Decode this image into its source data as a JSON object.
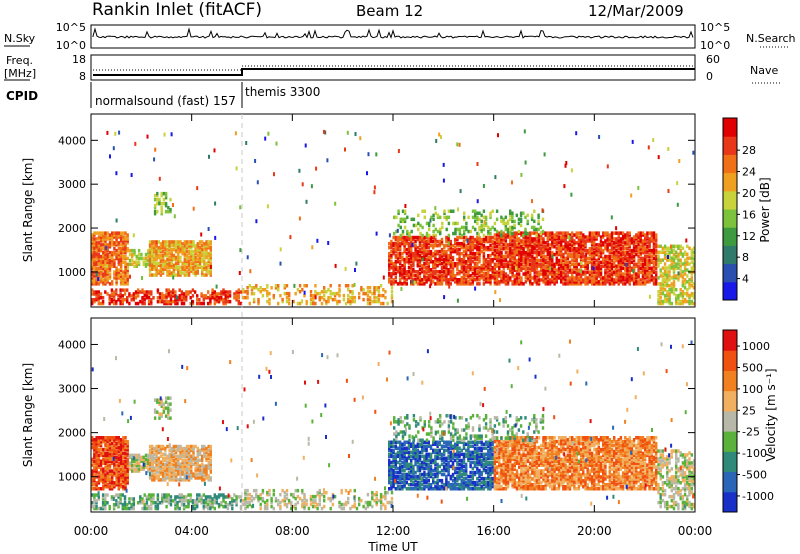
{
  "header": {
    "title": "Rankin Inlet (fitACF)",
    "beam": "Beam 12",
    "date": "12/Mar/2009"
  },
  "sky_panel": {
    "left_label": "N.Sky",
    "left_ticks": [
      "10^5",
      "10^0"
    ],
    "right_ticks": [
      "10^5",
      "10^0"
    ],
    "right_label": "N.Search"
  },
  "freq_panel": {
    "left_label_1": "Freq.",
    "left_label_2": "[MHz]",
    "left_ticks": [
      "18",
      "8"
    ],
    "right_ticks": [
      "60",
      "0"
    ],
    "right_label": "Nave"
  },
  "cpid": {
    "label": "CPID",
    "modes": [
      {
        "name": "normalsound (fast) 157",
        "start_hour": 0,
        "end_hour": 6
      },
      {
        "name": "themis 3300",
        "start_hour": 6,
        "end_hour": 24
      }
    ]
  },
  "chart_data": [
    {
      "type": "heatmap",
      "name": "power",
      "ylabel": "Slant Range [km]",
      "yticks": [
        "1000",
        "2000",
        "3000",
        "4000"
      ],
      "ylim": [
        200,
        4600
      ],
      "xlim": [
        0,
        24
      ],
      "colorbar": {
        "label": "Power [dB]",
        "ticks": [
          "4",
          "8",
          "12",
          "16",
          "20",
          "24",
          "28"
        ],
        "colors": [
          "#1818e8",
          "#2a4fb0",
          "#2f7a6a",
          "#3e9a3e",
          "#7cc23a",
          "#c8d23a",
          "#f0a020",
          "#f07018",
          "#e83818",
          "#e00000"
        ]
      }
    },
    {
      "type": "heatmap",
      "name": "velocity",
      "ylabel": "Slant Range [km]",
      "yticks": [
        "1000",
        "2000",
        "3000",
        "4000"
      ],
      "ylim": [
        200,
        4600
      ],
      "xlim": [
        0,
        24
      ],
      "xlabel": "Time UT",
      "xticks": [
        "00:00",
        "04:00",
        "08:00",
        "12:00",
        "16:00",
        "20:00",
        "00:00"
      ],
      "colorbar": {
        "label": "Velocity [m s⁻¹]",
        "ticks": [
          "1000",
          "500",
          "100",
          "25",
          "-25",
          "-100",
          "-500",
          "-1000"
        ],
        "colors": [
          "#1830c8",
          "#2a66b8",
          "#2f8a7a",
          "#5ab23a",
          "#b8b8a8",
          "#f0b060",
          "#f08020",
          "#f05010",
          "#e01010"
        ]
      }
    }
  ]
}
